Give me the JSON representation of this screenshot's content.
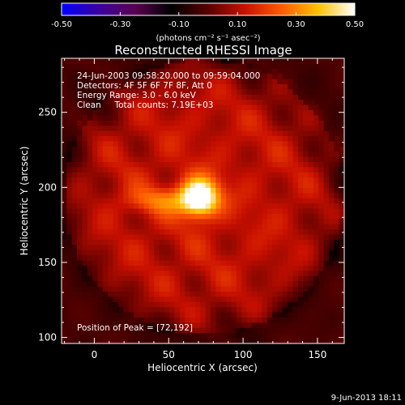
{
  "chart_data": {
    "type": "heatmap",
    "title": "Reconstructed RHESSI Image",
    "xlabel": "Heliocentric X (arcsec)",
    "ylabel": "Heliocentric Y (arcsec)",
    "xlim": [
      -22,
      168
    ],
    "ylim": [
      96,
      286
    ],
    "xticks": [
      0,
      50,
      100,
      150
    ],
    "yticks": [
      100,
      150,
      200,
      250
    ],
    "colorbar": {
      "min": -0.5,
      "max": 0.5,
      "ticks": [
        "-0.50",
        "-0.30",
        "-0.10",
        "0.10",
        "0.30",
        "0.50"
      ],
      "label": "(photons cm⁻² s⁻¹ asec⁻²)",
      "colormap": [
        "#0000ff",
        "#3a00a0",
        "#5a0050",
        "#000000",
        "#5a0000",
        "#c81000",
        "#ff5a00",
        "#ffc000",
        "#ffffff"
      ]
    },
    "annotations": [
      "24-Jun-2003 09:58:20.000 to 09:59:04.000",
      "Detectors: 4F 5F 6F 7F 8F, Att 0",
      "Energy Range: 3.0 - 6.0 keV",
      "Clean     Total counts: 7.19E+03"
    ],
    "peak_label": "Position of Peak = [72,192]",
    "peak": [
      72,
      192
    ],
    "peak_value": 0.5,
    "source": {
      "center": [
        68,
        192
      ],
      "extent": [
        -20,
        170,
        100,
        285
      ]
    }
  },
  "footer": {
    "date": "9-Jun-2013 18:11"
  }
}
